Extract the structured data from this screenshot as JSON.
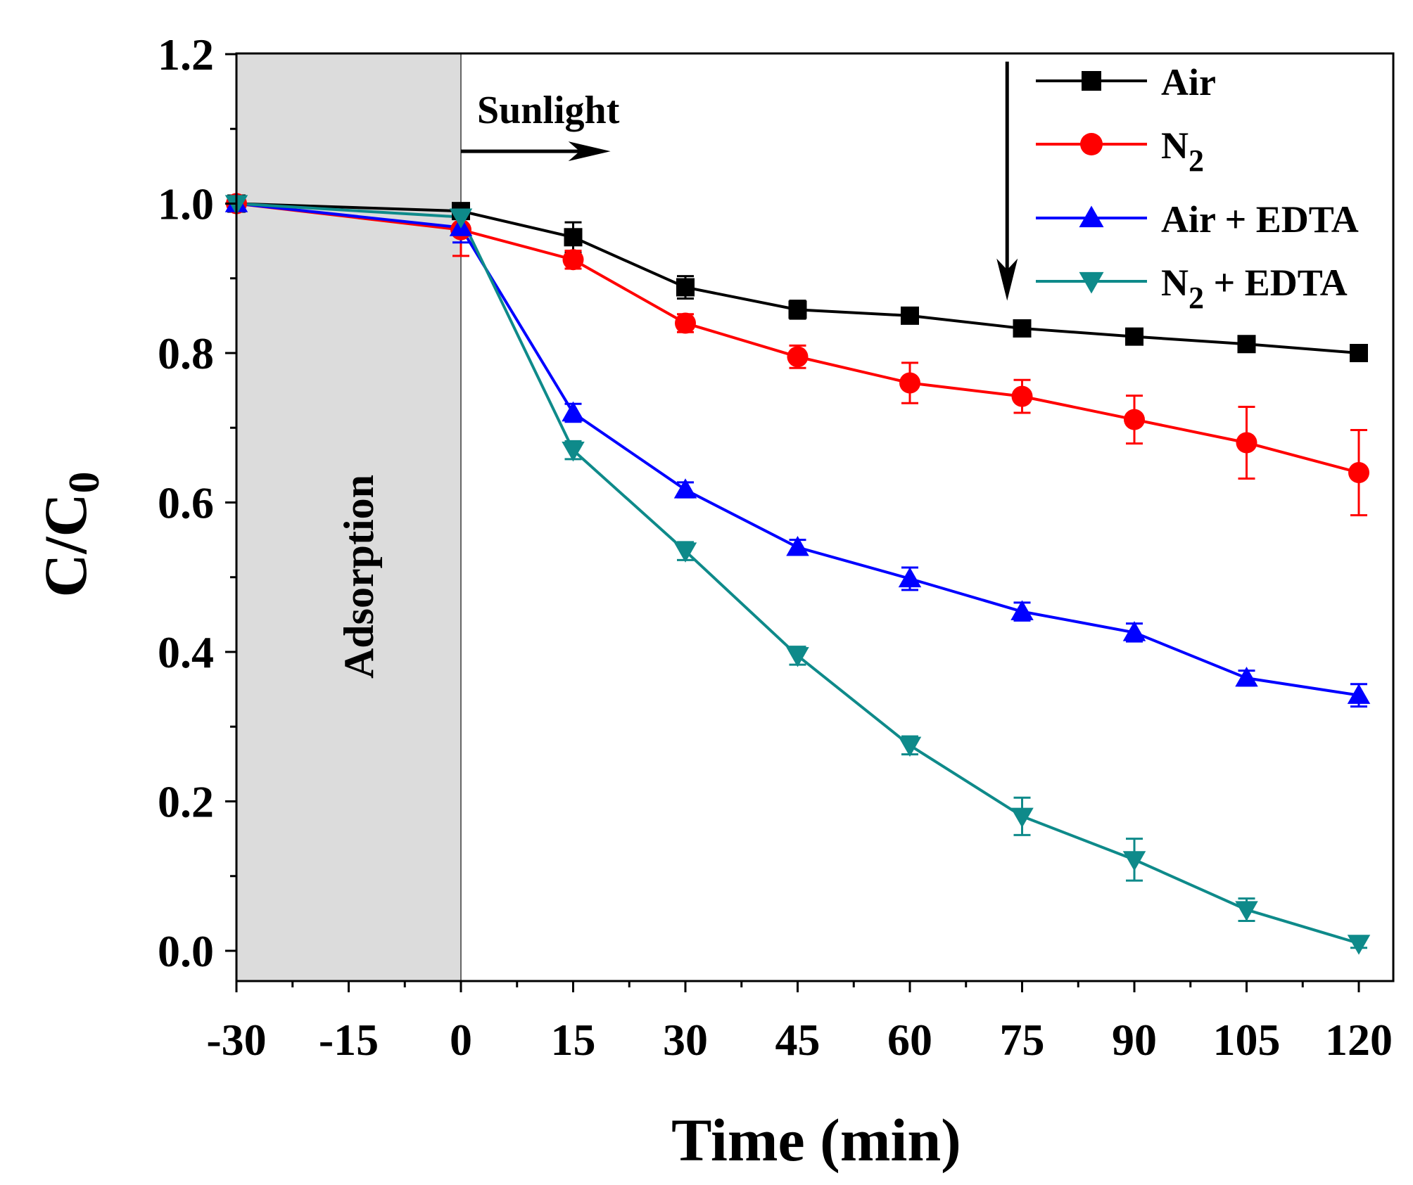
{
  "chart_data": {
    "type": "line",
    "title": "",
    "xlabel": "Time (min)",
    "ylabel": {
      "main": "C/C",
      "sub": "0"
    },
    "xlim": [
      -30,
      120
    ],
    "ylim": [
      -0.05,
      1.2
    ],
    "xticks": [
      -30,
      -15,
      0,
      15,
      30,
      45,
      60,
      75,
      90,
      105,
      120
    ],
    "xtick_labels": [
      "-30",
      "-15",
      "0",
      "15",
      "30",
      "45",
      "60",
      "75",
      "90",
      "105",
      "120"
    ],
    "yticks": [
      0.0,
      0.2,
      0.4,
      0.6,
      0.8,
      1.0,
      1.2
    ],
    "ytick_labels": [
      "0.0",
      "0.2",
      "0.4",
      "0.6",
      "0.8",
      "1.0",
      "1.2"
    ],
    "grid": false,
    "legend_position": "top-right",
    "shaded_region": {
      "x_from": -30,
      "x_to": 0,
      "label": "Adsorption",
      "color": "#dcdcdc"
    },
    "annotations": [
      {
        "text": "Sunlight",
        "arrow": "right",
        "x_from": 0,
        "x_to": 20,
        "y": 1.07
      },
      {
        "text": "",
        "arrow": "down",
        "x": 73,
        "y_from": 1.19,
        "y_to": 0.87
      }
    ],
    "x": [
      -30,
      0,
      15,
      30,
      45,
      60,
      75,
      90,
      105,
      120
    ],
    "series": [
      {
        "name": "Air",
        "name_sub": "",
        "name_suffix": "",
        "color": "#000000",
        "marker": "square",
        "values": [
          1.0,
          0.99,
          0.955,
          0.888,
          0.858,
          0.85,
          0.833,
          0.822,
          0.812,
          0.8
        ],
        "errors": [
          0,
          0.01,
          0.02,
          0.015,
          0.012,
          0.01,
          0.01,
          0.01,
          0.008,
          0.008
        ]
      },
      {
        "name": "N",
        "name_sub": "2",
        "name_suffix": "",
        "color": "#ff0000",
        "marker": "circle",
        "values": [
          1.0,
          0.965,
          0.925,
          0.84,
          0.795,
          0.76,
          0.742,
          0.711,
          0.68,
          0.64
        ],
        "errors": [
          0,
          0.035,
          0.012,
          0.012,
          0.015,
          0.027,
          0.022,
          0.032,
          0.048,
          0.057
        ]
      },
      {
        "name": "Air + EDTA",
        "name_sub": "",
        "name_suffix": "",
        "color": "#0000ff",
        "marker": "triangle-up",
        "values": [
          1.0,
          0.968,
          0.72,
          0.617,
          0.54,
          0.498,
          0.454,
          0.426,
          0.365,
          0.342
        ],
        "errors": [
          0,
          0.02,
          0.012,
          0.01,
          0.01,
          0.015,
          0.012,
          0.012,
          0.01,
          0.015
        ]
      },
      {
        "name": "N",
        "name_sub": "2",
        "name_suffix": " + EDTA",
        "color": "#0e8a8a",
        "marker": "triangle-down",
        "values": [
          1.0,
          0.982,
          0.67,
          0.535,
          0.395,
          0.275,
          0.18,
          0.122,
          0.055,
          0.01
        ],
        "errors": [
          0,
          0.01,
          0.012,
          0.012,
          0.012,
          0.012,
          0.025,
          0.028,
          0.015,
          0.006
        ]
      }
    ]
  }
}
